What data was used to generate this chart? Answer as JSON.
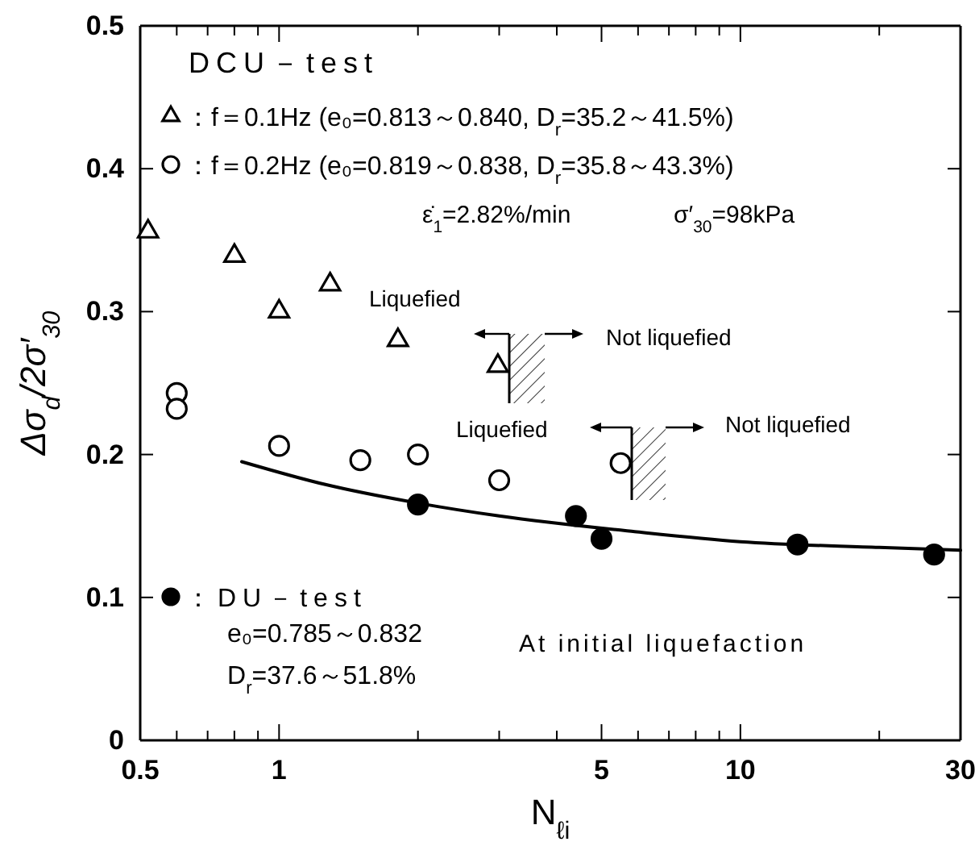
{
  "chart_data": {
    "type": "scatter",
    "xlabel": "N$_{ℓi}$",
    "ylabel": "Δσ$_{d}$/2σ′$_{30}$",
    "log": "x",
    "xlim": [
      0.5,
      30
    ],
    "ylim": [
      0,
      0.5
    ],
    "xticks": [
      {
        "value": 0.5,
        "label": "0.5"
      },
      {
        "value": 0.6,
        "label": null
      },
      {
        "value": 0.7,
        "label": null
      },
      {
        "value": 0.8,
        "label": null
      },
      {
        "value": 0.9,
        "label": null
      },
      1,
      {
        "value": 2,
        "label": null
      },
      {
        "value": 3,
        "label": null
      },
      {
        "value": 4,
        "label": null
      },
      5,
      {
        "value": 6,
        "label": null
      },
      {
        "value": 7,
        "label": null
      },
      {
        "value": 8,
        "label": null
      },
      {
        "value": 9,
        "label": null
      },
      10,
      {
        "value": 20,
        "label": null
      },
      30
    ],
    "yticks": [
      0,
      0.1,
      0.2,
      0.3,
      0.4,
      0.5
    ],
    "grid": false,
    "legend": "top left",
    "legend_title": "DCU－test",
    "series": [
      {
        "name": "：f＝0.1Hz (e₀=0.813～0.840, D$_{r}$=35.2～41.5%)",
        "color": "#ffffff",
        "marker": "triangle",
        "x": [
          0.52,
          0.8,
          1.0,
          1.29,
          1.81,
          2.98
        ],
        "values": [
          0.356,
          0.339,
          0.3,
          0.319,
          0.28,
          0.262
        ]
      },
      {
        "name": "：f＝0.2Hz (e₀=0.819～0.838, D$_{r}$=35.8～43.3%)",
        "color": "#ffffff",
        "marker": "circle",
        "x": [
          0.6,
          0.6,
          1.0,
          1.5,
          2.0,
          3.0,
          5.5
        ],
        "values": [
          0.243,
          0.232,
          0.206,
          0.196,
          0.2,
          0.182,
          0.194
        ]
      },
      {
        "name": "：DU－test",
        "color": "#000000",
        "marker": "circle",
        "x": [
          2.0,
          4.4,
          5.0,
          13.3,
          26.3
        ],
        "values": [
          0.165,
          0.157,
          0.141,
          0.137,
          0.13
        ]
      },
      {
        "type": "line",
        "color": "#000000",
        "marker": "none",
        "x": [
          0.83,
          1.26,
          2.0,
          3.0,
          5.9,
          10,
          20,
          30
        ],
        "values": [
          0.195,
          0.179,
          0.166,
          0.157,
          0.146,
          0.139,
          0.135,
          0.133
        ]
      }
    ],
    "annotations": [
      "e₀=0.785～0.832",
      "D$_{r}$=37.6～51.8%",
      "ε̇$_{1}$=2.82%/min",
      "σ′$_{30}$=98kPa",
      "Liquefied",
      "Not liquefied",
      "Liquefied",
      "Not liquefied",
      "At initial liquefaction"
    ]
  }
}
